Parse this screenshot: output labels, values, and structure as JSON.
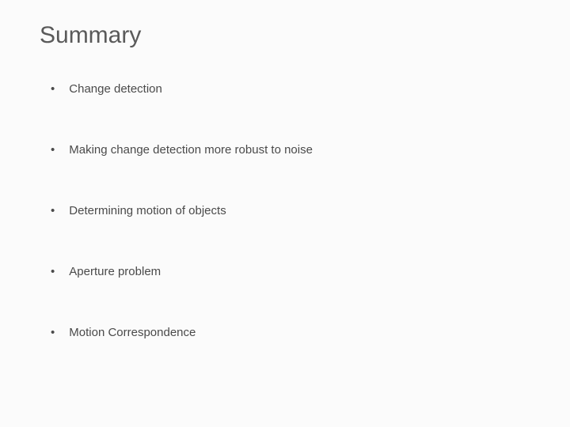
{
  "slide": {
    "title": "Summary",
    "bullets": [
      {
        "text": "Change detection"
      },
      {
        "text": "Making change detection more robust to noise"
      },
      {
        "text": "Determining motion of objects"
      },
      {
        "text": "Aperture problem"
      },
      {
        "text": "Motion Correspondence"
      }
    ],
    "background_color": "#fbfbfb",
    "title_color": "#5a5a5a",
    "text_color": "#4a4a4a",
    "title_fontsize": 30,
    "bullet_fontsize": 15,
    "bullet_marker": "•"
  }
}
